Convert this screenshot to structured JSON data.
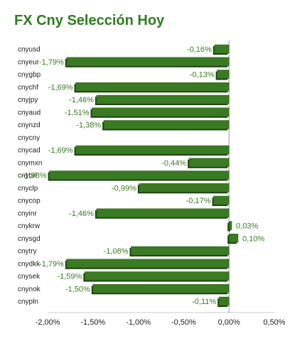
{
  "chart_data": {
    "type": "bar",
    "orientation": "horizontal",
    "title": "FX Cny Selección Hoy",
    "categories": [
      "cnyusd",
      "cnyeur",
      "cnygbp",
      "cnychf",
      "cnyjpy",
      "cnyaud",
      "cnynzd",
      "cnycny",
      "cnycad",
      "cnymxn",
      "cnybrl",
      "cnyclp",
      "cnycop",
      "cnyinr",
      "cnykrw",
      "cnysgd",
      "cnytry",
      "cnydkk",
      "cnysek",
      "cnynok",
      "cnypln"
    ],
    "values": [
      -0.16,
      -1.79,
      -0.13,
      -1.69,
      -1.46,
      -1.51,
      -1.38,
      null,
      -1.69,
      -0.44,
      -1.98,
      -0.99,
      -0.17,
      -1.46,
      0.03,
      0.1,
      -1.08,
      -1.79,
      -1.59,
      -1.5,
      -0.11
    ],
    "value_labels": [
      "-0,16%",
      "-1,79%",
      "-0,13%",
      "-1,69%",
      "-1,46%",
      "-1,51%",
      "-1,38%",
      "",
      "-1,69%",
      "-0,44%",
      "-1,98%",
      "-0,99%",
      "-0,17%",
      "-1,46%",
      "0,03%",
      "0,10%",
      "-1,08%",
      "-1,79%",
      "-1,59%",
      "-1,50%",
      "-0,11%"
    ],
    "xlim": [
      -2.0,
      0.5
    ],
    "xticks": [
      -2.0,
      -1.5,
      -1.0,
      -0.5,
      0.0,
      0.5
    ],
    "xtick_labels": [
      "-2,00%",
      "-1,50%",
      "-1,00%",
      "-0,50%",
      "0,00%",
      "0,50%"
    ],
    "grid": false,
    "legend": "none",
    "colors": {
      "title": "#2e7d1e",
      "bar": "#3a7a23",
      "bar_shadow": "#1d4410",
      "value_label": "#3a7a23",
      "axis": "#999999"
    }
  }
}
